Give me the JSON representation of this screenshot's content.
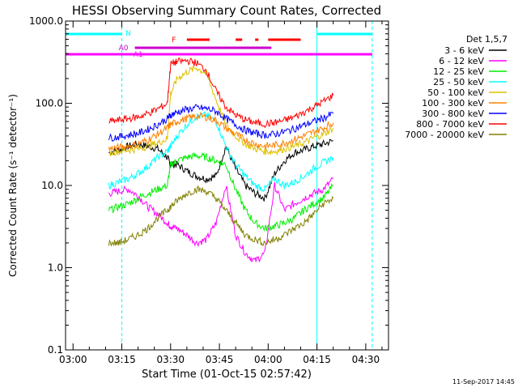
{
  "chart_data": {
    "type": "line",
    "title": "HESSI Observing Summary Count Rates, Corrected",
    "xlabel": "Start Time (01-Oct-15 02:57:42)",
    "ylabel": "Corrected Count Rate (s⁻¹ detector⁻¹)",
    "timestamp": "11-Sep-2017 14:45",
    "x_scale": "time",
    "y_scale": "log",
    "xlim": [
      "02:57:42",
      "04:37:00"
    ],
    "ylim": [
      0.1,
      1000.0
    ],
    "x_ticks": [
      "03:00",
      "03:15",
      "03:30",
      "03:45",
      "04:00",
      "04:15",
      "04:30"
    ],
    "y_ticks": [
      "0.1",
      "1.0",
      "10.0",
      "100.0",
      "1000.0"
    ],
    "legend": {
      "title": "Det 1,5,7",
      "position": "right",
      "entries": [
        "3 - 6 keV",
        "6 - 12 keV",
        "12 - 25 keV",
        "25 - 50 keV",
        "50 - 100 keV",
        "100 - 300 keV",
        "300 - 800 keV",
        "800 - 7000 keV",
        "7000 - 20000 keV"
      ]
    },
    "x": [
      "03:11",
      "03:14",
      "03:17",
      "03:20",
      "03:23",
      "03:26",
      "03:29",
      "03:30",
      "03:32",
      "03:35",
      "03:38",
      "03:41",
      "03:44",
      "03:47",
      "03:50",
      "03:53",
      "03:56",
      "03:59",
      "04:02",
      "04:05",
      "04:08",
      "04:11",
      "04:14",
      "04:17",
      "04:20"
    ],
    "series": [
      {
        "name": "3 - 6 keV",
        "color": "#000000",
        "values": [
          25,
          27,
          30,
          32,
          30,
          28,
          22,
          18,
          18,
          15,
          13,
          12,
          13,
          30,
          16,
          10,
          8,
          7,
          14,
          20,
          25,
          27,
          30,
          32,
          35
        ]
      },
      {
        "name": "6 - 12 keV",
        "color": "#ff00ff",
        "values": [
          8,
          8.5,
          9,
          7.5,
          5.5,
          4.5,
          3.5,
          3.2,
          3,
          2.5,
          2,
          2.2,
          3.5,
          10,
          2.5,
          1.5,
          1.2,
          1.5,
          10,
          5,
          6,
          7,
          8,
          9,
          12
        ]
      },
      {
        "name": "12 - 25 keV",
        "color": "#00ee00",
        "values": [
          5,
          5.5,
          6,
          7,
          8,
          9,
          10,
          18,
          20,
          22,
          23,
          22,
          20,
          18,
          9,
          5,
          3.5,
          3,
          3.2,
          3.5,
          4,
          5,
          6,
          7,
          10
        ]
      },
      {
        "name": "25 - 50 keV",
        "color": "#00ffff",
        "values": [
          10,
          11,
          12,
          14,
          17,
          22,
          26,
          30,
          40,
          55,
          70,
          72,
          60,
          30,
          18,
          13,
          10,
          9,
          12,
          10,
          11,
          13,
          16,
          19,
          22
        ]
      },
      {
        "name": "50 - 100 keV",
        "color": "#ddc000",
        "values": [
          25,
          26,
          27,
          28,
          30,
          33,
          37,
          130,
          200,
          240,
          270,
          230,
          110,
          55,
          40,
          32,
          28,
          26,
          26,
          28,
          30,
          33,
          38,
          42,
          50
        ]
      },
      {
        "name": "100 - 300 keV",
        "color": "#ff8000",
        "values": [
          28,
          29,
          30,
          32,
          36,
          42,
          50,
          55,
          60,
          65,
          70,
          68,
          62,
          50,
          42,
          36,
          32,
          30,
          31,
          33,
          36,
          40,
          45,
          50,
          58
        ]
      },
      {
        "name": "300 - 800 keV",
        "color": "#0000ff",
        "values": [
          38,
          39,
          41,
          43,
          48,
          55,
          65,
          72,
          78,
          84,
          88,
          86,
          80,
          65,
          55,
          47,
          43,
          41,
          42,
          45,
          49,
          54,
          60,
          66,
          75
        ]
      },
      {
        "name": "800 - 7000 keV",
        "color": "#ff0000",
        "values": [
          60,
          62,
          65,
          68,
          75,
          85,
          100,
          300,
          320,
          330,
          310,
          250,
          140,
          90,
          72,
          63,
          58,
          56,
          58,
          62,
          68,
          78,
          90,
          105,
          125
        ]
      },
      {
        "name": "7000 - 20000 keV",
        "color": "#808000",
        "values": [
          2,
          2,
          2.2,
          2.5,
          3,
          4,
          5,
          5.5,
          6.5,
          8,
          9,
          8.5,
          7,
          5,
          3.5,
          2.5,
          2.2,
          2,
          2.2,
          2.5,
          3,
          3.5,
          4.5,
          6,
          7
        ]
      }
    ],
    "flags": {
      "N": {
        "label": "N",
        "color": "#00ffff",
        "segments": [
          [
            "02:57:42",
            "03:15:00"
          ],
          [
            "04:15:00",
            "04:32:00"
          ]
        ]
      },
      "A0": {
        "label": "A0",
        "color": "#cc00cc",
        "segments": [
          [
            "03:19:00",
            "04:01:00"
          ]
        ]
      },
      "A1": {
        "label": "A1",
        "color": "#ff00ff",
        "segments": [
          [
            "02:57:42",
            "04:32:00"
          ]
        ]
      },
      "F": {
        "label": "F",
        "color": "#ff0000",
        "segments": [
          [
            "03:35:00",
            "03:42:00"
          ],
          [
            "03:50:00",
            "03:52:00"
          ],
          [
            "03:56:00",
            "03:57:00"
          ],
          [
            "04:00:00",
            "04:10:00"
          ]
        ]
      }
    },
    "markers": {
      "solid_lines": [
        "02:57:42",
        "04:15:00"
      ],
      "dashed_lines": [
        "03:15:00",
        "04:32:00"
      ],
      "color": "#00ffff"
    }
  }
}
